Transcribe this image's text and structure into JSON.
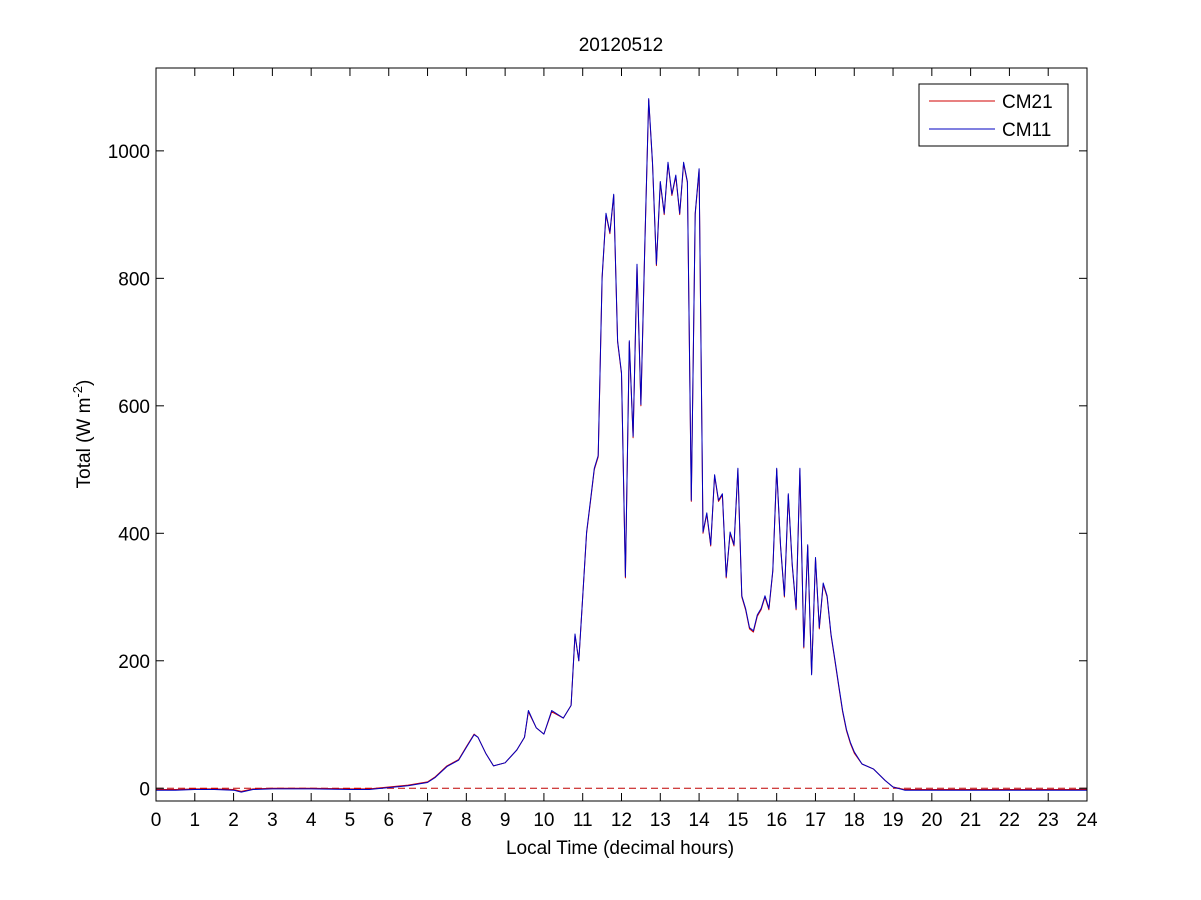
{
  "chart_data": {
    "type": "line",
    "title": "20120512",
    "xlabel": "Local Time (decimal hours)",
    "ylabel": "Total (W m",
    "ylabel_sup": "-2",
    "ylabel_end": ")",
    "xlim": [
      0,
      24
    ],
    "ylim": [
      -20,
      1130
    ],
    "xticks": [
      0,
      1,
      2,
      3,
      4,
      5,
      6,
      7,
      8,
      9,
      10,
      11,
      12,
      13,
      14,
      15,
      16,
      17,
      18,
      19,
      20,
      21,
      22,
      23,
      24
    ],
    "xtick_labels": [
      "0",
      "1",
      "2",
      "3",
      "4",
      "5",
      "6",
      "7",
      "8",
      "9",
      "10",
      "11",
      "12",
      "13",
      "14",
      "15",
      "16",
      "17",
      "18",
      "19",
      "20",
      "21",
      "22",
      "23",
      "24"
    ],
    "yticks": [
      0,
      200,
      400,
      600,
      800,
      1000
    ],
    "ytick_labels": [
      "0",
      "200",
      "400",
      "600",
      "800",
      "1000"
    ],
    "grid": false,
    "legend_position": "top-right",
    "reference_line": {
      "y": 0,
      "style": "dashed",
      "color": "#c00000"
    },
    "series": [
      {
        "name": "CM21",
        "color": "#d00000",
        "x": [
          0,
          0.5,
          1,
          1.5,
          2,
          2.2,
          2.5,
          3,
          4,
          5,
          5.5,
          6,
          6.5,
          7,
          7.2,
          7.5,
          7.8,
          8,
          8.2,
          8.3,
          8.5,
          8.7,
          9,
          9.3,
          9.5,
          9.6,
          9.8,
          10,
          10.2,
          10.5,
          10.7,
          10.8,
          10.9,
          11,
          11.1,
          11.2,
          11.3,
          11.4,
          11.5,
          11.6,
          11.7,
          11.8,
          11.9,
          12,
          12.1,
          12.2,
          12.3,
          12.4,
          12.5,
          12.6,
          12.7,
          12.8,
          12.9,
          13,
          13.1,
          13.2,
          13.3,
          13.4,
          13.5,
          13.6,
          13.7,
          13.8,
          13.9,
          14,
          14.1,
          14.2,
          14.3,
          14.4,
          14.5,
          14.6,
          14.7,
          14.8,
          14.9,
          15,
          15.1,
          15.2,
          15.3,
          15.4,
          15.5,
          15.6,
          15.7,
          15.8,
          15.9,
          16,
          16.1,
          16.2,
          16.3,
          16.4,
          16.5,
          16.6,
          16.7,
          16.8,
          16.9,
          17,
          17.1,
          17.2,
          17.3,
          17.4,
          17.5,
          17.6,
          17.7,
          17.8,
          17.9,
          18,
          18.2,
          18.5,
          18.8,
          19,
          19.3,
          19.6,
          20,
          21,
          22,
          23,
          24
        ],
        "y": [
          -2,
          -2,
          -1,
          -1,
          -2,
          -5,
          -1,
          0,
          0,
          -1,
          -1,
          2,
          5,
          10,
          18,
          35,
          45,
          65,
          85,
          80,
          55,
          35,
          40,
          60,
          80,
          120,
          95,
          85,
          120,
          110,
          130,
          240,
          200,
          300,
          400,
          450,
          500,
          520,
          800,
          900,
          870,
          930,
          700,
          650,
          330,
          700,
          550,
          820,
          600,
          850,
          1080,
          980,
          820,
          950,
          900,
          980,
          930,
          960,
          900,
          980,
          950,
          450,
          900,
          970,
          400,
          430,
          380,
          490,
          450,
          460,
          330,
          400,
          380,
          500,
          300,
          280,
          250,
          245,
          270,
          280,
          300,
          280,
          340,
          500,
          380,
          300,
          460,
          350,
          280,
          500,
          220,
          380,
          180,
          360,
          250,
          320,
          300,
          240,
          200,
          160,
          120,
          90,
          70,
          55,
          38,
          30,
          12,
          2,
          -2,
          -2,
          -2,
          -2,
          -2,
          -2,
          -2
        ]
      },
      {
        "name": "CM11",
        "color": "#0000c0",
        "x": [
          0,
          0.5,
          1,
          1.5,
          2,
          2.2,
          2.5,
          3,
          4,
          5,
          5.5,
          6,
          6.5,
          7,
          7.2,
          7.5,
          7.8,
          8,
          8.2,
          8.3,
          8.5,
          8.7,
          9,
          9.3,
          9.5,
          9.6,
          9.8,
          10,
          10.2,
          10.5,
          10.7,
          10.8,
          10.9,
          11,
          11.1,
          11.2,
          11.3,
          11.4,
          11.5,
          11.6,
          11.7,
          11.8,
          11.9,
          12,
          12.1,
          12.2,
          12.3,
          12.4,
          12.5,
          12.6,
          12.7,
          12.8,
          12.9,
          13,
          13.1,
          13.2,
          13.3,
          13.4,
          13.5,
          13.6,
          13.7,
          13.8,
          13.9,
          14,
          14.1,
          14.2,
          14.3,
          14.4,
          14.5,
          14.6,
          14.7,
          14.8,
          14.9,
          15,
          15.1,
          15.2,
          15.3,
          15.4,
          15.5,
          15.6,
          15.7,
          15.8,
          15.9,
          16,
          16.1,
          16.2,
          16.3,
          16.4,
          16.5,
          16.6,
          16.7,
          16.8,
          16.9,
          17,
          17.1,
          17.2,
          17.3,
          17.4,
          17.5,
          17.6,
          17.7,
          17.8,
          17.9,
          18,
          18.2,
          18.5,
          18.8,
          19,
          19.3,
          19.6,
          20,
          21,
          22,
          23,
          24
        ],
        "y": [
          -3,
          -3,
          -2,
          -2,
          -3,
          -6,
          -2,
          -1,
          -1,
          -2,
          -2,
          1,
          4,
          9,
          17,
          34,
          44,
          64,
          84,
          80,
          55,
          35,
          40,
          60,
          80,
          122,
          95,
          85,
          122,
          110,
          130,
          242,
          200,
          300,
          402,
          452,
          502,
          522,
          802,
          902,
          872,
          932,
          702,
          652,
          332,
          702,
          552,
          822,
          602,
          852,
          1082,
          982,
          822,
          952,
          902,
          982,
          932,
          962,
          902,
          982,
          952,
          452,
          902,
          972,
          402,
          432,
          382,
          492,
          452,
          462,
          332,
          402,
          382,
          502,
          302,
          282,
          252,
          247,
          272,
          282,
          302,
          282,
          342,
          502,
          382,
          302,
          462,
          352,
          282,
          502,
          222,
          382,
          178,
          362,
          252,
          322,
          302,
          242,
          202,
          162,
          122,
          92,
          72,
          57,
          38,
          30,
          12,
          2,
          -3,
          -3,
          -3,
          -3,
          -3,
          -3,
          -3
        ]
      }
    ]
  }
}
